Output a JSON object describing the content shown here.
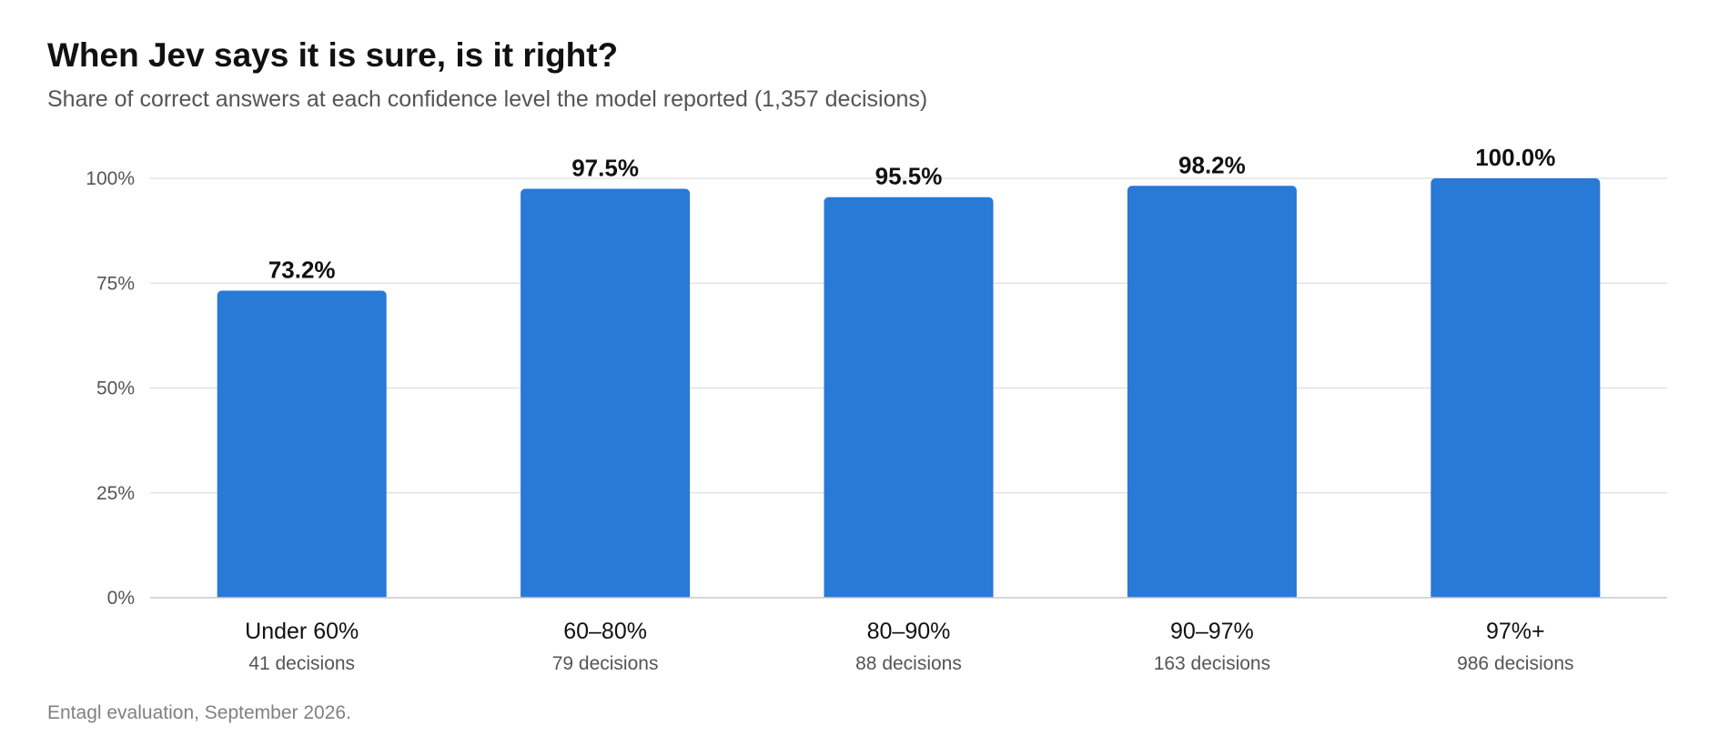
{
  "chart_data": {
    "type": "bar",
    "title": "When Jev says it is sure, is it right?",
    "subtitle": "Share of correct answers at each confidence level the model reported (1,357 decisions)",
    "source": "Entagl evaluation, September 2026.",
    "categories": [
      "Under 60%",
      "60–80%",
      "80–90%",
      "90–97%",
      "97%+"
    ],
    "category_sublabels": [
      "41 decisions",
      "79 decisions",
      "88 decisions",
      "163 decisions",
      "986 decisions"
    ],
    "values": [
      73.2,
      97.5,
      95.5,
      98.2,
      100.0
    ],
    "data_labels": [
      "73.2%",
      "97.5%",
      "95.5%",
      "98.2%",
      "100.0%"
    ],
    "ylim": [
      0,
      100
    ],
    "yticks": [
      0,
      25,
      50,
      75,
      100
    ],
    "ytick_labels": [
      "0%",
      "25%",
      "50%",
      "75%",
      "100%"
    ],
    "grid": true,
    "bar_color": "#2979d6",
    "grid_color": "#dddddd"
  }
}
